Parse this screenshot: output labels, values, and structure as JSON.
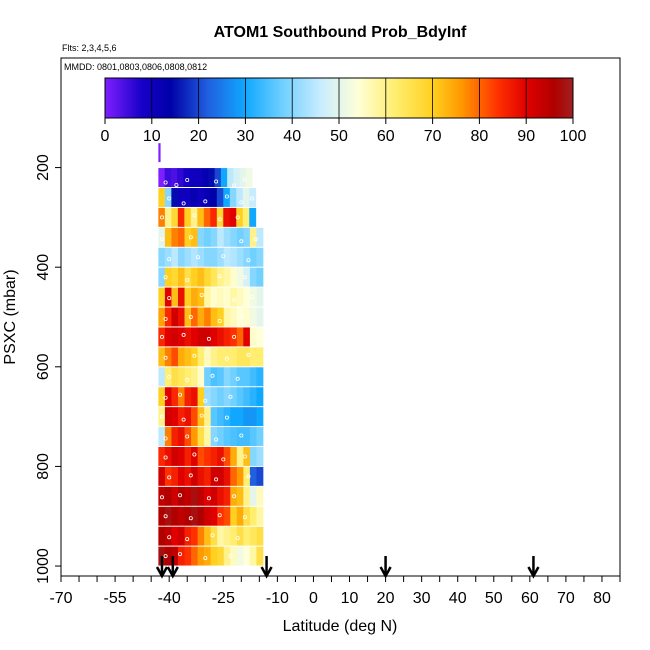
{
  "chart_data": {
    "type": "heatmap",
    "title": "ATOM1 Southbound Prob_BdyInf",
    "annotations": {
      "flights": "Flts: 2,3,4,5,6",
      "dates": "MMDD: 0801,0803,0806,0808,0812"
    },
    "xlabel": "Latitude (deg N)",
    "ylabel": "PSXC (mbar)",
    "xlim": [
      -70,
      85
    ],
    "ylim": [
      1020,
      -20
    ],
    "x_ticks_minor": [
      -70,
      -65,
      -60,
      -55,
      -50,
      -45,
      -40,
      -35,
      -30,
      -25,
      -20,
      -15,
      -10,
      -5,
      0,
      5,
      10,
      15,
      20,
      25,
      30,
      35,
      40,
      45,
      50,
      55,
      60,
      65,
      70,
      75,
      80,
      85
    ],
    "x_tick_labels": [
      "-70",
      "-55",
      "-40",
      "-25",
      "-10",
      "0",
      "10",
      "20",
      "30",
      "40",
      "50",
      "60",
      "70",
      "80"
    ],
    "x_tick_label_values": [
      -70,
      -55,
      -40,
      -25,
      -10,
      0,
      10,
      20,
      30,
      40,
      50,
      60,
      70,
      80
    ],
    "y_ticks": [
      200,
      400,
      600,
      800,
      1000
    ],
    "y_tick_labels": [
      "200",
      "400",
      "600",
      "800",
      "1000"
    ],
    "colorbar": {
      "ticks": [
        0,
        10,
        20,
        30,
        40,
        50,
        60,
        70,
        80,
        90,
        100
      ],
      "tick_labels": [
        "0",
        "10",
        "20",
        "30",
        "40",
        "50",
        "60",
        "70",
        "80",
        "90",
        "100"
      ],
      "stops": [
        {
          "v": 0,
          "c": "#7f1fff"
        },
        {
          "v": 8,
          "c": "#1600c8"
        },
        {
          "v": 14,
          "c": "#0000a8"
        },
        {
          "v": 22,
          "c": "#2060e0"
        },
        {
          "v": 30,
          "c": "#10a8ff"
        },
        {
          "v": 38,
          "c": "#70d0ff"
        },
        {
          "v": 46,
          "c": "#c8ecff"
        },
        {
          "v": 54,
          "c": "#ffffd8"
        },
        {
          "v": 62,
          "c": "#ffee70"
        },
        {
          "v": 70,
          "c": "#ffd020"
        },
        {
          "v": 76,
          "c": "#ff9a00"
        },
        {
          "v": 84,
          "c": "#ff3000"
        },
        {
          "v": 90,
          "c": "#e00000"
        },
        {
          "v": 96,
          "c": "#b00000"
        },
        {
          "v": 100,
          "c": "#a02020"
        }
      ]
    },
    "arrows_latitude": [
      -42,
      -39,
      -13,
      20,
      61
    ],
    "rows": [
      {
        "p": 170,
        "x0": -43,
        "x1": -42.5,
        "vals": [
          0
        ]
      },
      {
        "p": 220,
        "x0": -43,
        "x1": -17,
        "vals": [
          0,
          5,
          4,
          6,
          8,
          10,
          10,
          12,
          15,
          20,
          30,
          45,
          48,
          50,
          52
        ]
      },
      {
        "p": 260,
        "x0": -43,
        "x1": -16,
        "vals": [
          70,
          40,
          15,
          10,
          10,
          12,
          10,
          12,
          14,
          20,
          30,
          40,
          45,
          50,
          46
        ]
      },
      {
        "p": 300,
        "x0": -43,
        "x1": -16,
        "vals": [
          78,
          60,
          68,
          85,
          70,
          60,
          72,
          80,
          85,
          68,
          88,
          90,
          70,
          62,
          30
        ]
      },
      {
        "p": 340,
        "x0": -43,
        "x1": -14,
        "vals": [
          50,
          72,
          78,
          80,
          70,
          72,
          40,
          38,
          40,
          45,
          42,
          40,
          38,
          40,
          60,
          45
        ]
      },
      {
        "p": 380,
        "x0": -43,
        "x1": -14,
        "vals": [
          40,
          42,
          45,
          40,
          42,
          44,
          42,
          40,
          40,
          42,
          45,
          44,
          42,
          40,
          38,
          40
        ]
      },
      {
        "p": 420,
        "x0": -43,
        "x1": -14,
        "vals": [
          40,
          70,
          68,
          72,
          66,
          70,
          72,
          68,
          64,
          60,
          58,
          55,
          52,
          48,
          40,
          38
        ]
      },
      {
        "p": 460,
        "x0": -43,
        "x1": -14,
        "vals": [
          70,
          90,
          72,
          88,
          70,
          74,
          72,
          58,
          55,
          56,
          55,
          58,
          56,
          54,
          52,
          50
        ]
      },
      {
        "p": 500,
        "x0": -43,
        "x1": -14,
        "vals": [
          75,
          85,
          92,
          88,
          72,
          80,
          74,
          78,
          72,
          70,
          58,
          56,
          54,
          55,
          52,
          50
        ]
      },
      {
        "p": 540,
        "x0": -43,
        "x1": -14,
        "vals": [
          85,
          90,
          92,
          90,
          88,
          90,
          92,
          92,
          90,
          88,
          86,
          84,
          80,
          90,
          55,
          54
        ]
      },
      {
        "p": 580,
        "x0": -43,
        "x1": -14,
        "vals": [
          72,
          78,
          82,
          74,
          72,
          70,
          62,
          56,
          60,
          62,
          62,
          62,
          64,
          64,
          62,
          62
        ]
      },
      {
        "p": 620,
        "x0": -43,
        "x1": -14,
        "vals": [
          45,
          62,
          66,
          64,
          62,
          60,
          55,
          38,
          35,
          36,
          40,
          38,
          36,
          36,
          34,
          32
        ]
      },
      {
        "p": 660,
        "x0": -43,
        "x1": -14,
        "vals": [
          70,
          90,
          85,
          78,
          86,
          88,
          70,
          42,
          40,
          38,
          40,
          38,
          36,
          34,
          32,
          30
        ]
      },
      {
        "p": 700,
        "x0": -43,
        "x1": -14,
        "vals": [
          60,
          92,
          90,
          86,
          88,
          82,
          72,
          60,
          36,
          34,
          32,
          30,
          30,
          28,
          28,
          30
        ]
      },
      {
        "p": 740,
        "x0": -43,
        "x1": -14,
        "vals": [
          45,
          78,
          86,
          88,
          82,
          76,
          66,
          58,
          40,
          38,
          36,
          35,
          34,
          34,
          36,
          38
        ]
      },
      {
        "p": 780,
        "x0": -43,
        "x1": -14,
        "vals": [
          85,
          88,
          92,
          90,
          86,
          90,
          82,
          84,
          86,
          88,
          82,
          74,
          60,
          72,
          40,
          42
        ]
      },
      {
        "p": 820,
        "x0": -43,
        "x1": -14,
        "vals": [
          92,
          84,
          86,
          90,
          88,
          92,
          88,
          86,
          92,
          92,
          88,
          80,
          76,
          62,
          22,
          20
        ]
      },
      {
        "p": 860,
        "x0": -43,
        "x1": -14,
        "vals": [
          94,
          96,
          92,
          96,
          94,
          98,
          94,
          90,
          92,
          88,
          86,
          74,
          72,
          60,
          50,
          56
        ]
      },
      {
        "p": 900,
        "x0": -43,
        "x1": -14,
        "vals": [
          96,
          98,
          96,
          94,
          96,
          98,
          96,
          92,
          90,
          84,
          82,
          70,
          74,
          66,
          62,
          58
        ]
      },
      {
        "p": 940,
        "x0": -43,
        "x1": -14,
        "vals": [
          96,
          94,
          90,
          92,
          86,
          84,
          78,
          72,
          66,
          58,
          60,
          62,
          66,
          62,
          64,
          66
        ]
      },
      {
        "p": 980,
        "x0": -43,
        "x1": -14,
        "vals": [
          98,
          96,
          94,
          86,
          84,
          80,
          76,
          74,
          70,
          68,
          60,
          56,
          52,
          54,
          58,
          66
        ]
      }
    ],
    "samples": [
      [
        -41,
        230
      ],
      [
        -38,
        235
      ],
      [
        -35,
        225
      ],
      [
        -27,
        228
      ],
      [
        -22,
        236
      ],
      [
        -19,
        224
      ],
      [
        -40,
        262
      ],
      [
        -36,
        272
      ],
      [
        -30,
        268
      ],
      [
        -24,
        258
      ],
      [
        -20,
        270
      ],
      [
        -17,
        262
      ],
      [
        -42,
        300
      ],
      [
        -33,
        296
      ],
      [
        -26,
        304
      ],
      [
        -21,
        300
      ],
      [
        -42,
        344
      ],
      [
        -34,
        340
      ],
      [
        -20,
        348
      ],
      [
        -16,
        344
      ],
      [
        -40,
        384
      ],
      [
        -32,
        380
      ],
      [
        -25,
        378
      ],
      [
        -18,
        386
      ],
      [
        -41,
        420
      ],
      [
        -35,
        426
      ],
      [
        -26,
        418
      ],
      [
        -19,
        420
      ],
      [
        -40,
        462
      ],
      [
        -31,
        456
      ],
      [
        -22,
        466
      ],
      [
        -17,
        460
      ],
      [
        -41,
        504
      ],
      [
        -34,
        500
      ],
      [
        -26,
        508
      ],
      [
        -20,
        498
      ],
      [
        -42,
        540
      ],
      [
        -36,
        536
      ],
      [
        -29,
        544
      ],
      [
        -22,
        540
      ],
      [
        -41,
        582
      ],
      [
        -33,
        578
      ],
      [
        -24,
        584
      ],
      [
        -18,
        576
      ],
      [
        -40,
        620
      ],
      [
        -35,
        626
      ],
      [
        -28,
        618
      ],
      [
        -21,
        624
      ],
      [
        -41,
        662
      ],
      [
        -37,
        656
      ],
      [
        -30,
        668
      ],
      [
        -23,
        660
      ],
      [
        -42,
        700
      ],
      [
        -36,
        706
      ],
      [
        -31,
        698
      ],
      [
        -24,
        702
      ],
      [
        -41,
        744
      ],
      [
        -35,
        740
      ],
      [
        -27,
        746
      ],
      [
        -20,
        738
      ],
      [
        -41,
        782
      ],
      [
        -33,
        776
      ],
      [
        -25,
        786
      ],
      [
        -19,
        780
      ],
      [
        -40,
        822
      ],
      [
        -34,
        818
      ],
      [
        -27,
        826
      ],
      [
        -18,
        820
      ],
      [
        -42,
        862
      ],
      [
        -37,
        858
      ],
      [
        -29,
        864
      ],
      [
        -22,
        860
      ],
      [
        -41,
        900
      ],
      [
        -34,
        904
      ],
      [
        -26,
        898
      ],
      [
        -19,
        902
      ],
      [
        -40,
        942
      ],
      [
        -35,
        946
      ],
      [
        -28,
        938
      ],
      [
        -21,
        944
      ],
      [
        -41,
        980
      ],
      [
        -37,
        976
      ],
      [
        -30,
        984
      ],
      [
        -23,
        980
      ]
    ]
  }
}
